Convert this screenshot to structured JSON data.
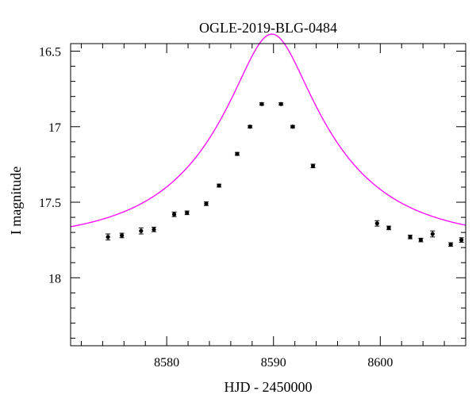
{
  "chart_data": {
    "type": "scatter",
    "title": "OGLE-2019-BLG-0484",
    "xlabel": "HJD - 2450000",
    "ylabel": "I magnitude",
    "xlim": [
      8571,
      8608
    ],
    "ylim": [
      18.45,
      16.45
    ],
    "y_inverted": true,
    "xticks": [
      8580,
      8590,
      8600
    ],
    "xtick_labels": [
      "8580",
      "8590",
      "8600"
    ],
    "yticks": [
      16.5,
      17,
      17.5,
      18
    ],
    "ytick_labels": [
      "16.5",
      "17",
      "17.5",
      "18"
    ],
    "grid": false,
    "series": [
      {
        "kind": "points",
        "color": "#000000",
        "points": [
          {
            "x": 8574.5,
            "y": 17.73,
            "err": 0.02
          },
          {
            "x": 8575.8,
            "y": 17.72,
            "err": 0.015
          },
          {
            "x": 8577.6,
            "y": 17.69,
            "err": 0.02
          },
          {
            "x": 8578.8,
            "y": 17.68,
            "err": 0.015
          },
          {
            "x": 8580.7,
            "y": 17.58,
            "err": 0.015
          },
          {
            "x": 8581.9,
            "y": 17.57,
            "err": 0.012
          },
          {
            "x": 8583.7,
            "y": 17.51,
            "err": 0.012
          },
          {
            "x": 8584.9,
            "y": 17.39,
            "err": 0.01
          },
          {
            "x": 8586.6,
            "y": 17.18,
            "err": 0.01
          },
          {
            "x": 8587.8,
            "y": 17.0,
            "err": 0.008
          },
          {
            "x": 8588.9,
            "y": 16.85,
            "err": 0.008
          },
          {
            "x": 8590.7,
            "y": 16.85,
            "err": 0.008
          },
          {
            "x": 8591.8,
            "y": 17.0,
            "err": 0.008
          },
          {
            "x": 8593.7,
            "y": 17.26,
            "err": 0.012
          },
          {
            "x": 8599.7,
            "y": 17.64,
            "err": 0.018
          },
          {
            "x": 8600.8,
            "y": 17.67,
            "err": 0.012
          },
          {
            "x": 8602.8,
            "y": 17.73,
            "err": 0.012
          },
          {
            "x": 8603.8,
            "y": 17.75,
            "err": 0.012
          },
          {
            "x": 8604.9,
            "y": 17.71,
            "err": 0.02
          },
          {
            "x": 8606.6,
            "y": 17.78,
            "err": 0.012
          },
          {
            "x": 8607.6,
            "y": 17.75,
            "err": 0.015
          }
        ]
      },
      {
        "kind": "model-curve",
        "color": "#ff00ff",
        "model": {
          "t0": 8589.85,
          "tE": 11.4,
          "u0": 0.28,
          "base_mag": 17.76,
          "source_fraction": 0.95
        }
      }
    ]
  }
}
